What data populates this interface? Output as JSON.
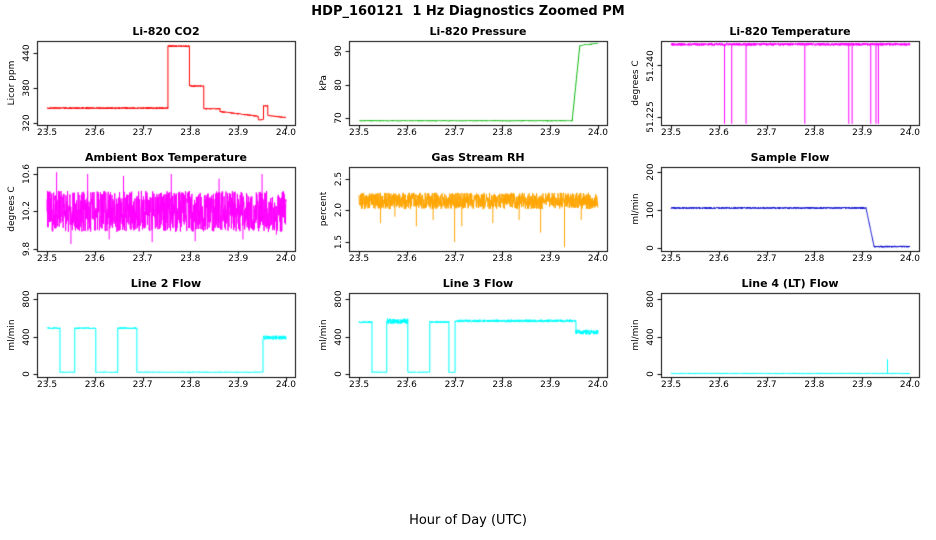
{
  "page_title": "HDP_160121  1 Hz Diagnostics Zoomed PM",
  "x_axis_label": "Hour of Day (UTC)",
  "chart_data": {
    "type": "line",
    "x_range": [
      23.48,
      24.02
    ],
    "x_ticks": [
      {
        "v": 23.5,
        "label": "23.5"
      },
      {
        "v": 23.6,
        "label": "23.6"
      },
      {
        "v": 23.7,
        "label": "23.7"
      },
      {
        "v": 23.8,
        "label": "23.8"
      },
      {
        "v": 23.9,
        "label": "23.9"
      },
      {
        "v": 24.0,
        "label": "24.0"
      }
    ],
    "charts": [
      {
        "title": "Li-820 CO2",
        "ylabel": "Licor ppm",
        "color": "#FF0000",
        "ylim": [
          315,
          460
        ],
        "yticks": [
          {
            "v": 320,
            "label": "320"
          },
          {
            "v": 380,
            "label": "380"
          },
          {
            "v": 440,
            "label": "440"
          }
        ],
        "segments": [
          {
            "x0": 23.5,
            "x1": 23.753,
            "y0": 345,
            "y1": 345,
            "noise": 1.5
          },
          {
            "x0": 23.753,
            "x1": 23.798,
            "y0": 452,
            "y1": 452,
            "noise": 1.5
          },
          {
            "x0": 23.798,
            "x1": 23.828,
            "y0": 383,
            "y1": 383,
            "noise": 1.2
          },
          {
            "x0": 23.828,
            "x1": 23.862,
            "y0": 344,
            "y1": 344,
            "noise": 1.2
          },
          {
            "x0": 23.862,
            "x1": 23.942,
            "y0": 339,
            "y1": 331,
            "noise": 1.0
          },
          {
            "x0": 23.942,
            "x1": 23.953,
            "y0": 325,
            "y1": 325,
            "noise": 1.0
          },
          {
            "x0": 23.953,
            "x1": 23.962,
            "y0": 349,
            "y1": 349,
            "noise": 1.0
          },
          {
            "x0": 23.962,
            "x1": 24.0,
            "y0": 332,
            "y1": 329,
            "noise": 1.0
          }
        ],
        "spikes": []
      },
      {
        "title": "Li-820 Pressure",
        "ylabel": "kPa",
        "color": "#00B400",
        "ylim": [
          67.8,
          92.8
        ],
        "yticks": [
          {
            "v": 70,
            "label": "70"
          },
          {
            "v": 80,
            "label": "80"
          },
          {
            "v": 90,
            "label": "90"
          }
        ],
        "segments": [
          {
            "x0": 23.5,
            "x1": 23.946,
            "y0": 69.2,
            "y1": 69.2,
            "noise": 0.12
          },
          {
            "x0": 23.946,
            "x1": 23.962,
            "y0": 69.2,
            "y1": 91.5,
            "noise": 0.1
          },
          {
            "x0": 23.962,
            "x1": 24.0,
            "y0": 91.6,
            "y1": 92.3,
            "noise": 0.1
          }
        ],
        "spikes": []
      },
      {
        "title": "Li-820 Temperature",
        "ylabel": "degrees C",
        "color": "#FF00FF",
        "ylim": [
          51.2225,
          51.247
        ],
        "yticks": [
          {
            "v": 51.225,
            "label": "51.225"
          },
          {
            "v": 51.24,
            "label": "51.240"
          }
        ],
        "segments": [
          {
            "x0": 23.5,
            "x1": 24.0,
            "y0": 51.2462,
            "y1": 51.2462,
            "noise": 0.0004
          }
        ],
        "spikes": [
          {
            "x": 23.612,
            "y": 51.223
          },
          {
            "x": 23.627,
            "y": 51.223
          },
          {
            "x": 23.657,
            "y": 51.223
          },
          {
            "x": 23.78,
            "y": 51.223
          },
          {
            "x": 23.872,
            "y": 51.223
          },
          {
            "x": 23.879,
            "y": 51.223
          },
          {
            "x": 23.918,
            "y": 51.223
          },
          {
            "x": 23.929,
            "y": 51.223
          },
          {
            "x": 23.934,
            "y": 51.223
          }
        ]
      },
      {
        "title": "Ambient Box Temperature",
        "ylabel": "degrees C",
        "color": "#FF00FF",
        "ylim": [
          9.77,
          10.67
        ],
        "yticks": [
          {
            "v": 9.8,
            "label": "9.8"
          },
          {
            "v": 10.2,
            "label": "10.2"
          },
          {
            "v": 10.6,
            "label": "10.6"
          }
        ],
        "segments": [
          {
            "x0": 23.5,
            "x1": 24.0,
            "y0": 10.2,
            "y1": 10.2,
            "noise": 0.22
          }
        ],
        "spikes": [
          {
            "x": 23.52,
            "y": 10.62
          },
          {
            "x": 23.55,
            "y": 9.85
          },
          {
            "x": 23.585,
            "y": 10.6
          },
          {
            "x": 23.63,
            "y": 9.9
          },
          {
            "x": 23.66,
            "y": 10.58
          },
          {
            "x": 23.72,
            "y": 9.87
          },
          {
            "x": 23.76,
            "y": 10.6
          },
          {
            "x": 23.81,
            "y": 9.88
          },
          {
            "x": 23.86,
            "y": 10.55
          },
          {
            "x": 23.91,
            "y": 9.9
          },
          {
            "x": 23.95,
            "y": 10.6
          },
          {
            "x": 23.98,
            "y": 9.95
          }
        ]
      },
      {
        "title": "Gas Stream RH",
        "ylabel": "percent",
        "color": "#FFA500",
        "ylim": [
          1.35,
          2.68
        ],
        "yticks": [
          {
            "v": 1.5,
            "label": "1.5"
          },
          {
            "v": 2.0,
            "label": "2.0"
          },
          {
            "v": 2.5,
            "label": "2.5"
          }
        ],
        "segments": [
          {
            "x0": 23.5,
            "x1": 24.0,
            "y0": 2.15,
            "y1": 2.15,
            "noise": 0.13
          }
        ],
        "spikes": [
          {
            "x": 23.545,
            "y": 1.8
          },
          {
            "x": 23.575,
            "y": 1.9
          },
          {
            "x": 23.62,
            "y": 1.75
          },
          {
            "x": 23.655,
            "y": 1.85
          },
          {
            "x": 23.7,
            "y": 1.5
          },
          {
            "x": 23.715,
            "y": 1.75
          },
          {
            "x": 23.78,
            "y": 1.8
          },
          {
            "x": 23.835,
            "y": 1.85
          },
          {
            "x": 23.88,
            "y": 1.65
          },
          {
            "x": 23.93,
            "y": 1.42
          },
          {
            "x": 23.965,
            "y": 1.85
          }
        ]
      },
      {
        "title": "Sample Flow",
        "ylabel": "ml/min",
        "color": "#0000CD",
        "ylim": [
          -10,
          212
        ],
        "yticks": [
          {
            "v": 0,
            "label": "0"
          },
          {
            "v": 100,
            "label": "100"
          },
          {
            "v": 200,
            "label": "200"
          }
        ],
        "segments": [
          {
            "x0": 23.5,
            "x1": 23.908,
            "y0": 105,
            "y1": 105,
            "noise": 2
          },
          {
            "x0": 23.908,
            "x1": 23.925,
            "y0": 105,
            "y1": 3,
            "noise": 0
          },
          {
            "x0": 23.925,
            "x1": 24.0,
            "y0": 3,
            "y1": 3,
            "noise": 2
          }
        ],
        "spikes": []
      },
      {
        "title": "Line 2 Flow",
        "ylabel": "ml/min",
        "color": "#00FFFF",
        "ylim": [
          -35,
          860
        ],
        "yticks": [
          {
            "v": 0,
            "label": "0"
          },
          {
            "v": 400,
            "label": "400"
          },
          {
            "v": 800,
            "label": "800"
          }
        ],
        "segments": [
          {
            "x0": 23.5,
            "x1": 23.527,
            "y0": 490,
            "y1": 490,
            "noise": 8
          },
          {
            "x0": 23.527,
            "x1": 23.558,
            "y0": 22,
            "y1": 22,
            "noise": 4
          },
          {
            "x0": 23.558,
            "x1": 23.602,
            "y0": 490,
            "y1": 490,
            "noise": 8
          },
          {
            "x0": 23.602,
            "x1": 23.648,
            "y0": 22,
            "y1": 22,
            "noise": 4
          },
          {
            "x0": 23.648,
            "x1": 23.688,
            "y0": 490,
            "y1": 490,
            "noise": 8
          },
          {
            "x0": 23.688,
            "x1": 23.952,
            "y0": 22,
            "y1": 22,
            "noise": 4
          },
          {
            "x0": 23.952,
            "x1": 24.0,
            "y0": 390,
            "y1": 390,
            "noise": 22
          }
        ],
        "spikes": []
      },
      {
        "title": "Line 3 Flow",
        "ylabel": "ml/min",
        "color": "#00FFFF",
        "ylim": [
          -35,
          860
        ],
        "yticks": [
          {
            "v": 0,
            "label": "0"
          },
          {
            "v": 400,
            "label": "400"
          },
          {
            "v": 800,
            "label": "800"
          }
        ],
        "segments": [
          {
            "x0": 23.5,
            "x1": 23.527,
            "y0": 555,
            "y1": 555,
            "noise": 10
          },
          {
            "x0": 23.527,
            "x1": 23.558,
            "y0": 22,
            "y1": 22,
            "noise": 4
          },
          {
            "x0": 23.558,
            "x1": 23.602,
            "y0": 565,
            "y1": 565,
            "noise": 28
          },
          {
            "x0": 23.602,
            "x1": 23.648,
            "y0": 22,
            "y1": 22,
            "noise": 4
          },
          {
            "x0": 23.648,
            "x1": 23.688,
            "y0": 555,
            "y1": 555,
            "noise": 10
          },
          {
            "x0": 23.688,
            "x1": 23.701,
            "y0": 22,
            "y1": 22,
            "noise": 4
          },
          {
            "x0": 23.701,
            "x1": 23.954,
            "y0": 568,
            "y1": 568,
            "noise": 14
          },
          {
            "x0": 23.954,
            "x1": 24.0,
            "y0": 448,
            "y1": 448,
            "noise": 26
          }
        ],
        "spikes": []
      },
      {
        "title": "Line 4 (LT) Flow",
        "ylabel": "ml/min",
        "color": "#00FFFF",
        "ylim": [
          -35,
          860
        ],
        "yticks": [
          {
            "v": 0,
            "label": "0"
          },
          {
            "v": 400,
            "label": "400"
          },
          {
            "v": 800,
            "label": "800"
          }
        ],
        "segments": [
          {
            "x0": 23.5,
            "x1": 24.0,
            "y0": 8,
            "y1": 8,
            "noise": 6
          }
        ],
        "spikes": [
          {
            "x": 23.953,
            "y": 160
          }
        ]
      }
    ]
  }
}
